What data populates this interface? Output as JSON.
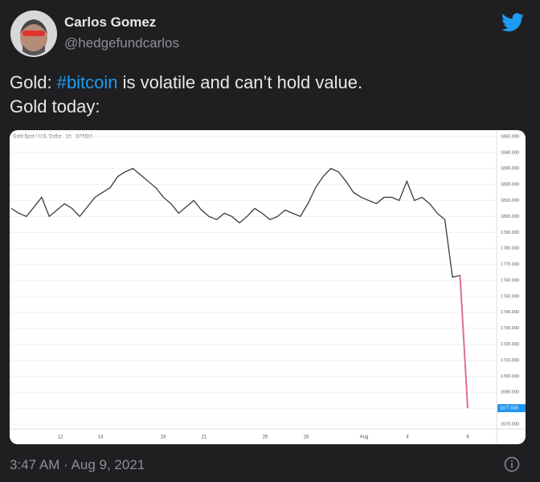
{
  "tweet": {
    "author_name": "Carlos Gomez",
    "handle": "@hedgefundcarlos",
    "text_parts": [
      "Gold: ",
      "#bitcoin",
      " is volatile and can’t hold value."
    ],
    "text_line2": "Gold today:",
    "timestamp": "3:47 AM · Aug 9, 2021"
  },
  "chart": {
    "header": "Gold Spot / U.S. Dollar · 1h · OANDA",
    "x_labels": [
      "12",
      "14",
      "19",
      "21",
      "26",
      "28",
      "Aug",
      "4",
      "9"
    ],
    "values": [
      1805,
      1802,
      1800,
      1806,
      1812,
      1800,
      1804,
      1808,
      1805,
      1800,
      1806,
      1812,
      1815,
      1818,
      1825,
      1828,
      1830,
      1826,
      1822,
      1818,
      1812,
      1808,
      1802,
      1806,
      1810,
      1804,
      1800,
      1798,
      1802,
      1800,
      1796,
      1800,
      1805,
      1802,
      1798,
      1800,
      1804,
      1802,
      1800,
      1808,
      1818,
      1825,
      1830,
      1828,
      1822,
      1815,
      1812,
      1810,
      1808,
      1812,
      1812,
      1810,
      1822,
      1810,
      1812,
      1808,
      1802,
      1798,
      1762,
      1763,
      1680
    ],
    "ylim": [
      1670,
      1850
    ],
    "yticks": [
      {
        "value": 1850,
        "label": "1850.000"
      },
      {
        "value": 1840,
        "label": "1840.000"
      },
      {
        "value": 1830,
        "label": "1830.000"
      },
      {
        "value": 1820,
        "label": "1820.000"
      },
      {
        "value": 1810,
        "label": "1810.000"
      },
      {
        "value": 1800,
        "label": "1800.000"
      },
      {
        "value": 1790,
        "label": "1790.000"
      },
      {
        "value": 1780,
        "label": "1780.000"
      },
      {
        "value": 1770,
        "label": "1770.000"
      },
      {
        "value": 1760,
        "label": "1760.000"
      },
      {
        "value": 1750,
        "label": "1750.000"
      },
      {
        "value": 1740,
        "label": "1740.000"
      },
      {
        "value": 1730,
        "label": "1730.000"
      },
      {
        "value": 1720,
        "label": "1720.000"
      },
      {
        "value": 1710,
        "label": "1710.000"
      },
      {
        "value": 1700,
        "label": "1700.000"
      },
      {
        "value": 1690,
        "label": "1690.000"
      },
      {
        "value": 1680,
        "label": "1680.000"
      },
      {
        "value": 1670,
        "label": "1670.000"
      }
    ],
    "last_price_label": "1677.600",
    "line_color": "#3a3a3a",
    "accent_color": "#e06f8b"
  }
}
